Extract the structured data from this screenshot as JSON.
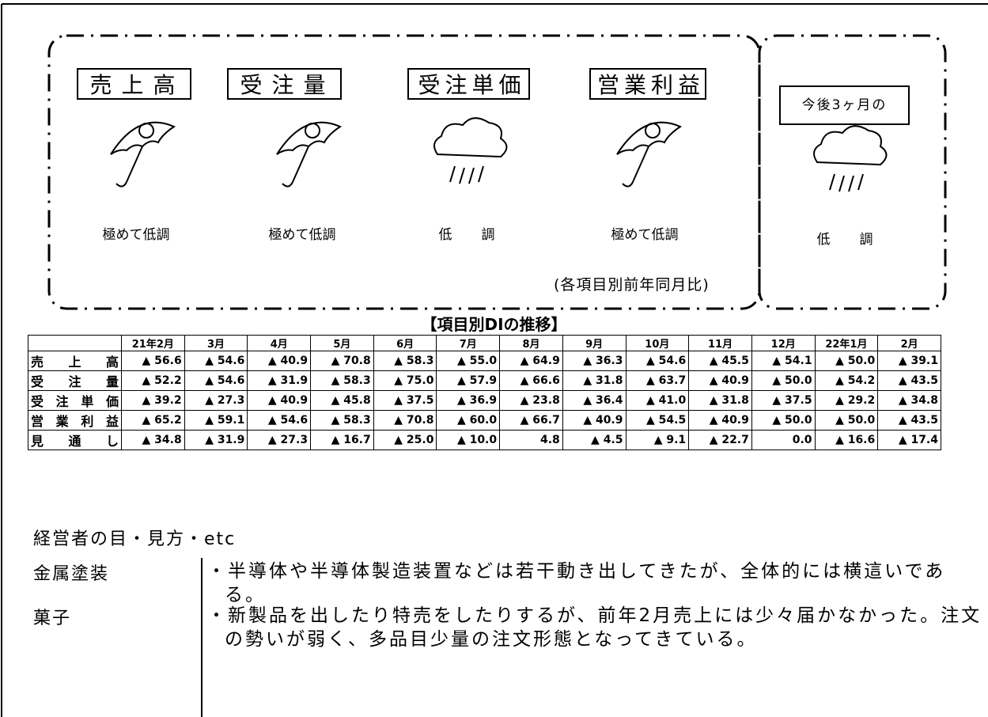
{
  "forecast": {
    "items": [
      {
        "label": "売上高",
        "status": "極めて低調"
      },
      {
        "label": "受注量",
        "status": "極めて低調"
      },
      {
        "label": "受注単価",
        "status": "低　調"
      },
      {
        "label": "営業利益",
        "status": "極めて低調"
      }
    ],
    "note": "(各項目別前年同月比)",
    "outlook": {
      "label": "今後3ヶ月の",
      "status": "低　調"
    }
  },
  "table": {
    "title": "【項目別DIの推移】",
    "columns": [
      "21年2月",
      "3月",
      "4月",
      "5月",
      "6月",
      "7月",
      "8月",
      "9月",
      "10月",
      "11月",
      "12月",
      "22年1月",
      "2月"
    ],
    "rows": [
      {
        "label": "売上高",
        "cells": [
          "▲ 56.6",
          "▲ 54.6",
          "▲ 40.9",
          "▲ 70.8",
          "▲ 58.3",
          "▲ 55.0",
          "▲ 64.9",
          "▲ 36.3",
          "▲ 54.6",
          "▲ 45.5",
          "▲ 54.1",
          "▲ 50.0",
          "▲ 39.1"
        ]
      },
      {
        "label": "受注量",
        "cells": [
          "▲ 52.2",
          "▲ 54.6",
          "▲ 31.9",
          "▲ 58.3",
          "▲ 75.0",
          "▲ 57.9",
          "▲ 66.6",
          "▲ 31.8",
          "▲ 63.7",
          "▲ 40.9",
          "▲ 50.0",
          "▲ 54.2",
          "▲ 43.5"
        ]
      },
      {
        "label": "受注単価",
        "cells": [
          "▲ 39.2",
          "▲ 27.3",
          "▲ 40.9",
          "▲ 45.8",
          "▲ 37.5",
          "▲ 36.9",
          "▲ 23.8",
          "▲ 36.4",
          "▲ 41.0",
          "▲ 31.8",
          "▲ 37.5",
          "▲ 29.2",
          "▲ 34.8"
        ]
      },
      {
        "label": "営業利益",
        "cells": [
          "▲ 65.2",
          "▲ 59.1",
          "▲ 54.6",
          "▲ 58.3",
          "▲ 70.8",
          "▲ 60.0",
          "▲ 66.7",
          "▲ 40.9",
          "▲ 54.5",
          "▲ 40.9",
          "▲ 50.0",
          "▲ 50.0",
          "▲ 43.5"
        ]
      },
      {
        "label": "見通し",
        "cells": [
          "▲ 34.8",
          "▲ 31.9",
          "▲ 27.3",
          "▲ 16.7",
          "▲ 25.0",
          "▲ 10.0",
          "4.8",
          "▲ 4.5",
          "▲ 9.1",
          "▲ 22.7",
          "0.0",
          "▲ 16.6",
          "▲ 17.4"
        ]
      }
    ]
  },
  "comments": {
    "heading": "経営者の目・見方・etc",
    "rows": [
      {
        "industry": "金属塗装",
        "text": "・半導体や半導体製造装置などは若干動き出してきたが、全体的には横這いである。"
      },
      {
        "industry": "菓子",
        "text": "・新製品を出したり特売をしたりするが、前年2月売上には少々届かなかった。注文の勢いが弱く、多品目少量の注文形態となってきている。"
      }
    ]
  }
}
